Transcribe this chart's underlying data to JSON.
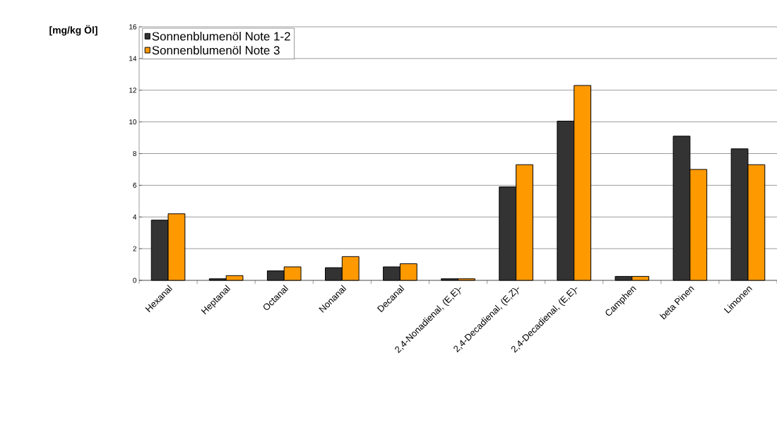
{
  "chart_data": {
    "type": "bar",
    "ylabel": "[mg/kg Öl]",
    "categories": [
      "Hexanal",
      "Heptanal",
      "Octanal",
      "Nonanal",
      "Decanal",
      "2,4-Nonadienal, (E,E)-",
      "2,4-Decadienal, (E,Z)-",
      "2,4-Decadienal, (E,E)-",
      "Camphen",
      "beta Pinen",
      "Limonen"
    ],
    "series": [
      {
        "name": "Sonnenblumenöl Note 1-2",
        "color": "#333333",
        "values": [
          3.8,
          0.1,
          0.6,
          0.8,
          0.85,
          0.1,
          5.9,
          10.05,
          0.25,
          9.1,
          8.3
        ]
      },
      {
        "name": "Sonnenblumenöl Note 3",
        "color": "#ff9900",
        "values": [
          4.2,
          0.3,
          0.85,
          1.5,
          1.05,
          0.1,
          7.3,
          12.3,
          0.25,
          7.0,
          7.3
        ]
      }
    ],
    "ylim": [
      0,
      16
    ],
    "yticks": [
      0,
      2,
      4,
      6,
      8,
      10,
      12,
      14,
      16
    ],
    "grid": "y",
    "legend": "top left"
  }
}
